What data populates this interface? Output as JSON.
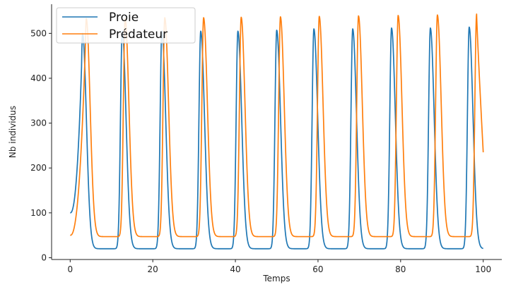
{
  "chart_data": {
    "type": "line",
    "xlabel": "Temps",
    "ylabel": "Nb individus",
    "xlim": [
      -4.5,
      104.5
    ],
    "ylim": [
      -4,
      565
    ],
    "xticks": [
      0,
      20,
      40,
      60,
      80,
      100
    ],
    "yticks": [
      0,
      100,
      200,
      300,
      400,
      500
    ],
    "grid": false,
    "legend_position": "top-left",
    "series": [
      {
        "name": "Proie",
        "color": "#1f77b4",
        "start": [
          0,
          100
        ],
        "end": [
          100,
          20
        ],
        "min_value": 20,
        "peaks": [
          [
            3.0,
            500
          ],
          [
            12.6,
            505
          ],
          [
            22.2,
            505
          ],
          [
            31.6,
            505
          ],
          [
            40.6,
            505
          ],
          [
            50.0,
            507
          ],
          [
            59.0,
            510
          ],
          [
            68.4,
            510
          ],
          [
            77.8,
            512
          ],
          [
            87.2,
            512
          ],
          [
            96.6,
            514
          ]
        ]
      },
      {
        "name": "Prédateur",
        "color": "#ff7f0e",
        "start": [
          0,
          50
        ],
        "end": [
          100,
          235
        ],
        "min_value": 47,
        "peaks": [
          [
            3.9,
            533
          ],
          [
            13.3,
            533
          ],
          [
            22.9,
            535
          ],
          [
            32.3,
            535
          ],
          [
            41.4,
            536
          ],
          [
            50.9,
            537
          ],
          [
            60.3,
            538
          ],
          [
            69.8,
            539
          ],
          [
            79.4,
            540
          ],
          [
            88.9,
            541
          ],
          [
            98.4,
            543
          ]
        ]
      }
    ]
  }
}
